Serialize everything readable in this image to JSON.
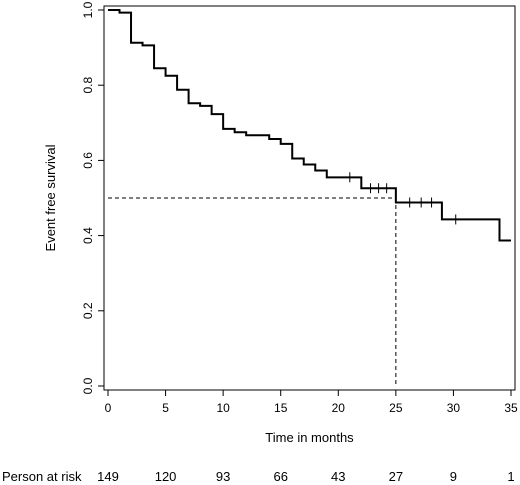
{
  "chart_data": {
    "type": "line",
    "title": "",
    "xlabel": "Time in months",
    "ylabel": "Event free survival",
    "xlim": [
      0,
      35
    ],
    "ylim": [
      0,
      1
    ],
    "x_ticks": [
      0,
      5,
      10,
      15,
      20,
      25,
      30,
      35
    ],
    "y_ticks": [
      "0.0",
      "0.2",
      "0.4",
      "0.6",
      "0.8",
      "1.0"
    ],
    "grid": false,
    "legend": "none",
    "series": [
      {
        "style": "step",
        "color": "#000000",
        "x": [
          0,
          1,
          2,
          3,
          4,
          5,
          6,
          7,
          8,
          9,
          10,
          11,
          12,
          14,
          15,
          16,
          17,
          18,
          19,
          21,
          22,
          25,
          29,
          34,
          35
        ],
        "y": [
          1.0,
          0.993,
          0.913,
          0.906,
          0.845,
          0.825,
          0.788,
          0.752,
          0.745,
          0.723,
          0.684,
          0.675,
          0.667,
          0.657,
          0.644,
          0.605,
          0.589,
          0.573,
          0.555,
          0.555,
          0.526,
          0.488,
          0.443,
          0.387,
          0.387
        ]
      }
    ],
    "censor_marks": [
      {
        "x": 21,
        "y": 0.555
      },
      {
        "x": 22.8,
        "y": 0.526
      },
      {
        "x": 23.5,
        "y": 0.526
      },
      {
        "x": 24.2,
        "y": 0.526
      },
      {
        "x": 26.2,
        "y": 0.488
      },
      {
        "x": 27.2,
        "y": 0.488
      },
      {
        "x": 28.1,
        "y": 0.488
      },
      {
        "x": 30.2,
        "y": 0.443
      }
    ],
    "median_reference": {
      "y": 0.5,
      "x": 25,
      "style": "dashed"
    },
    "risk_table": {
      "label": "Person at risk",
      "values": [
        "149",
        "120",
        "93",
        "66",
        "43",
        "27",
        "9",
        "1"
      ]
    }
  }
}
